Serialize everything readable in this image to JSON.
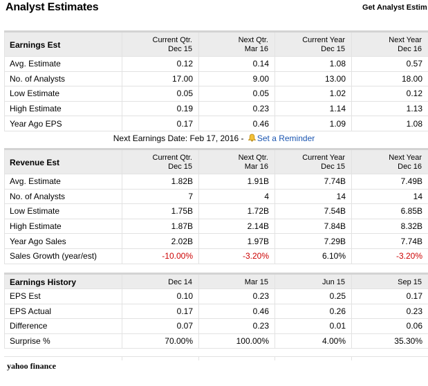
{
  "page_title": "Analyst Estimates",
  "get_link": "Get Analyst Estim",
  "earnings_est": {
    "header": [
      "Earnings Est",
      "Current Qtr.|Dec 15",
      "Next Qtr.|Mar 16",
      "Current Year|Dec 15",
      "Next Year|Dec 16"
    ],
    "rows": [
      [
        "Avg. Estimate",
        "0.12",
        "0.14",
        "1.08",
        "0.57"
      ],
      [
        "No. of Analysts",
        "17.00",
        "9.00",
        "13.00",
        "18.00"
      ],
      [
        "Low Estimate",
        "0.05",
        "0.05",
        "1.02",
        "0.12"
      ],
      [
        "High Estimate",
        "0.19",
        "0.23",
        "1.14",
        "1.13"
      ],
      [
        "Year Ago EPS",
        "0.17",
        "0.46",
        "1.09",
        "1.08"
      ]
    ]
  },
  "next_earnings": {
    "text": "Next Earnings Date: Feb 17, 2016 - ",
    "reminder_link": "Set a Reminder",
    "icon": "bell-icon"
  },
  "revenue_est": {
    "header": [
      "Revenue Est",
      "Current Qtr.|Dec 15",
      "Next Qtr.|Mar 16",
      "Current Year|Dec 15",
      "Next Year|Dec 16"
    ],
    "rows": [
      [
        "Avg. Estimate",
        "1.82B",
        "1.91B",
        "7.74B",
        "7.49B"
      ],
      [
        "No. of Analysts",
        "7",
        "4",
        "14",
        "14"
      ],
      [
        "Low Estimate",
        "1.75B",
        "1.72B",
        "7.54B",
        "6.85B"
      ],
      [
        "High Estimate",
        "1.87B",
        "2.14B",
        "7.84B",
        "8.32B"
      ],
      [
        "Year Ago Sales",
        "2.02B",
        "1.97B",
        "7.29B",
        "7.74B"
      ],
      [
        "Sales Growth (year/est)",
        "-10.00%",
        "-3.20%",
        "6.10%",
        "-3.20%"
      ]
    ]
  },
  "earnings_history": {
    "header": [
      "Earnings History",
      "Dec 14",
      "Mar 15",
      "Jun 15",
      "Sep 15"
    ],
    "rows": [
      [
        "EPS Est",
        "0.10",
        "0.23",
        "0.25",
        "0.17"
      ],
      [
        "EPS Actual",
        "0.17",
        "0.46",
        "0.26",
        "0.23"
      ],
      [
        "Difference",
        "0.07",
        "0.23",
        "0.01",
        "0.06"
      ],
      [
        "Surprise %",
        "70.00%",
        "100.00%",
        "4.00%",
        "35.30%"
      ]
    ]
  },
  "brand": "yahoo finance",
  "colors": {
    "negative": "#cc0000",
    "link": "#1a55b0",
    "header_bg": "#ececec",
    "border": "#e2e2e2"
  }
}
